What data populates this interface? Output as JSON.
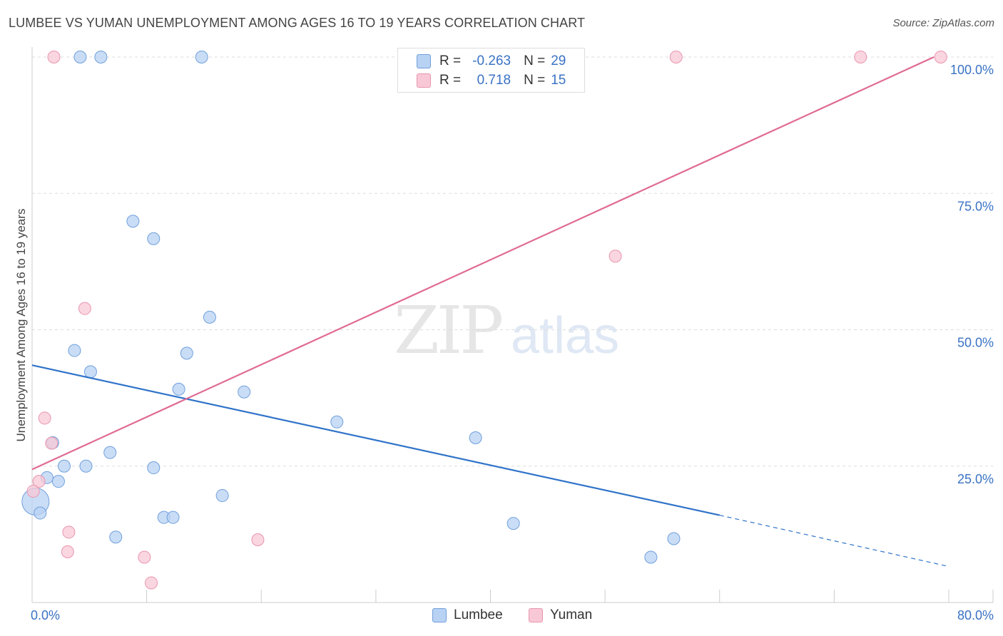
{
  "header": {
    "title": "LUMBEE VS YUMAN UNEMPLOYMENT AMONG AGES 16 TO 19 YEARS CORRELATION CHART",
    "source": "Source: ZipAtlas.com"
  },
  "watermark": {
    "zip": "ZIP",
    "atlas": "atlas"
  },
  "legend": {
    "rows": [
      {
        "r_label": "R =",
        "r_value": "-0.263",
        "n_label": "N =",
        "n_value": "29"
      },
      {
        "r_label": "R =",
        "r_value": "0.718",
        "n_label": "N =",
        "n_value": "15"
      }
    ]
  },
  "bottom_legend": {
    "lumbee": "Lumbee",
    "yuman": "Yuman"
  },
  "colors": {
    "lumbee_fill": "#b8d2f3",
    "lumbee_stroke": "#6fa0dc",
    "lumbee_line": "#2f73c9",
    "yuman_fill": "#f8c8d6",
    "yuman_stroke": "#e995ae",
    "yuman_line": "#e06b92",
    "axis_label": "#3a72c4",
    "grid": "#dddddd"
  },
  "chart_data": {
    "type": "scatter",
    "title": "LUMBEE VS YUMAN UNEMPLOYMENT AMONG AGES 16 TO 19 YEARS CORRELATION CHART",
    "xlabel": "",
    "ylabel": "Unemployment Among Ages 16 to 19 years",
    "xlim": [
      0,
      80
    ],
    "ylim": [
      0,
      100
    ],
    "x_tick_labels": [
      "0.0%",
      "80.0%"
    ],
    "y_ticks": [
      25,
      50,
      75,
      100
    ],
    "y_tick_labels": [
      "25.0%",
      "50.0%",
      "75.0%",
      "100.0%"
    ],
    "grid": true,
    "series": [
      {
        "name": "Lumbee",
        "points": [
          [
            4.2,
            100
          ],
          [
            6.0,
            100
          ],
          [
            14.8,
            100
          ],
          [
            8.8,
            69.9
          ],
          [
            10.6,
            66.7
          ],
          [
            15.5,
            52.3
          ],
          [
            3.7,
            46.2
          ],
          [
            13.5,
            45.7
          ],
          [
            5.1,
            42.3
          ],
          [
            12.8,
            39.1
          ],
          [
            18.5,
            38.6
          ],
          [
            26.6,
            33.1
          ],
          [
            38.7,
            30.2
          ],
          [
            1.8,
            29.3
          ],
          [
            6.8,
            27.5
          ],
          [
            2.8,
            25.0
          ],
          [
            4.7,
            25.0
          ],
          [
            10.6,
            24.7
          ],
          [
            1.3,
            22.9
          ],
          [
            2.3,
            22.2
          ],
          [
            16.6,
            19.6
          ],
          [
            0.3,
            18.5
          ],
          [
            0.7,
            16.4
          ],
          [
            11.5,
            15.6
          ],
          [
            12.3,
            15.6
          ],
          [
            42.0,
            14.5
          ],
          [
            7.3,
            12.0
          ],
          [
            56.0,
            11.7
          ],
          [
            54.0,
            8.3
          ]
        ],
        "trend": {
          "x": [
            0,
            60
          ],
          "y": [
            43.5,
            16.0
          ],
          "dashed_to": [
            80,
            6.6
          ]
        }
      },
      {
        "name": "Yuman",
        "points": [
          [
            1.9,
            100
          ],
          [
            56.2,
            100
          ],
          [
            72.3,
            100
          ],
          [
            79.3,
            100
          ],
          [
            50.9,
            63.5
          ],
          [
            4.6,
            53.9
          ],
          [
            1.1,
            33.8
          ],
          [
            1.7,
            29.2
          ],
          [
            0.6,
            22.2
          ],
          [
            0.1,
            20.4
          ],
          [
            3.2,
            12.9
          ],
          [
            19.7,
            11.5
          ],
          [
            3.1,
            9.3
          ],
          [
            9.8,
            8.3
          ],
          [
            10.4,
            3.6
          ]
        ],
        "trend": {
          "x": [
            0,
            78.7
          ],
          "y": [
            24.4,
            100
          ]
        }
      }
    ]
  }
}
